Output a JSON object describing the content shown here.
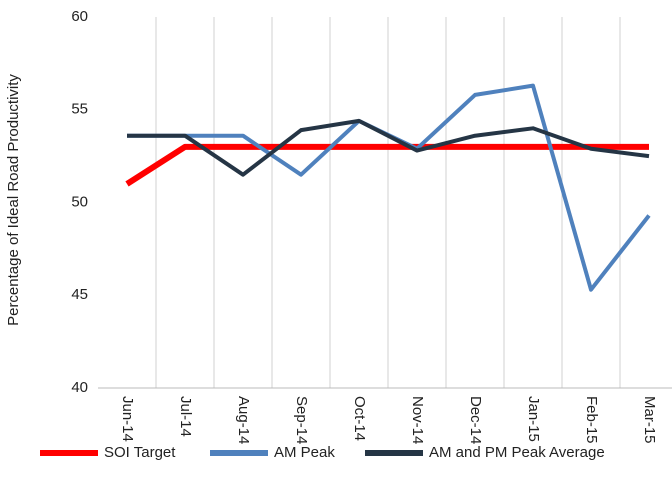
{
  "chart_data": {
    "type": "line",
    "y_label": "Percentage of Ideal Road Productivity",
    "categories": [
      "Jun-14",
      "Jul-14",
      "Aug-14",
      "Sep-14",
      "Oct-14",
      "Nov-14",
      "Dec-14",
      "Jan-15",
      "Feb-15",
      "Mar-15"
    ],
    "series": [
      {
        "name": "SOI Target",
        "color": "#ff0000",
        "values": [
          51,
          53,
          53,
          53,
          53,
          53,
          53,
          53,
          53,
          53
        ]
      },
      {
        "name": "AM Peak",
        "color": "#4f81bd",
        "values": [
          53.6,
          53.6,
          53.6,
          51.5,
          54.4,
          52.9,
          55.8,
          56.3,
          45.3,
          49.3
        ]
      },
      {
        "name": "AM and PM Peak Average",
        "color": "#253545",
        "values": [
          53.6,
          53.6,
          51.5,
          53.9,
          54.4,
          52.8,
          53.6,
          54.0,
          52.9,
          52.5
        ]
      }
    ],
    "ylim": [
      40,
      60
    ],
    "yticks": [
      40,
      45,
      50,
      55,
      60
    ],
    "grid": "x"
  }
}
